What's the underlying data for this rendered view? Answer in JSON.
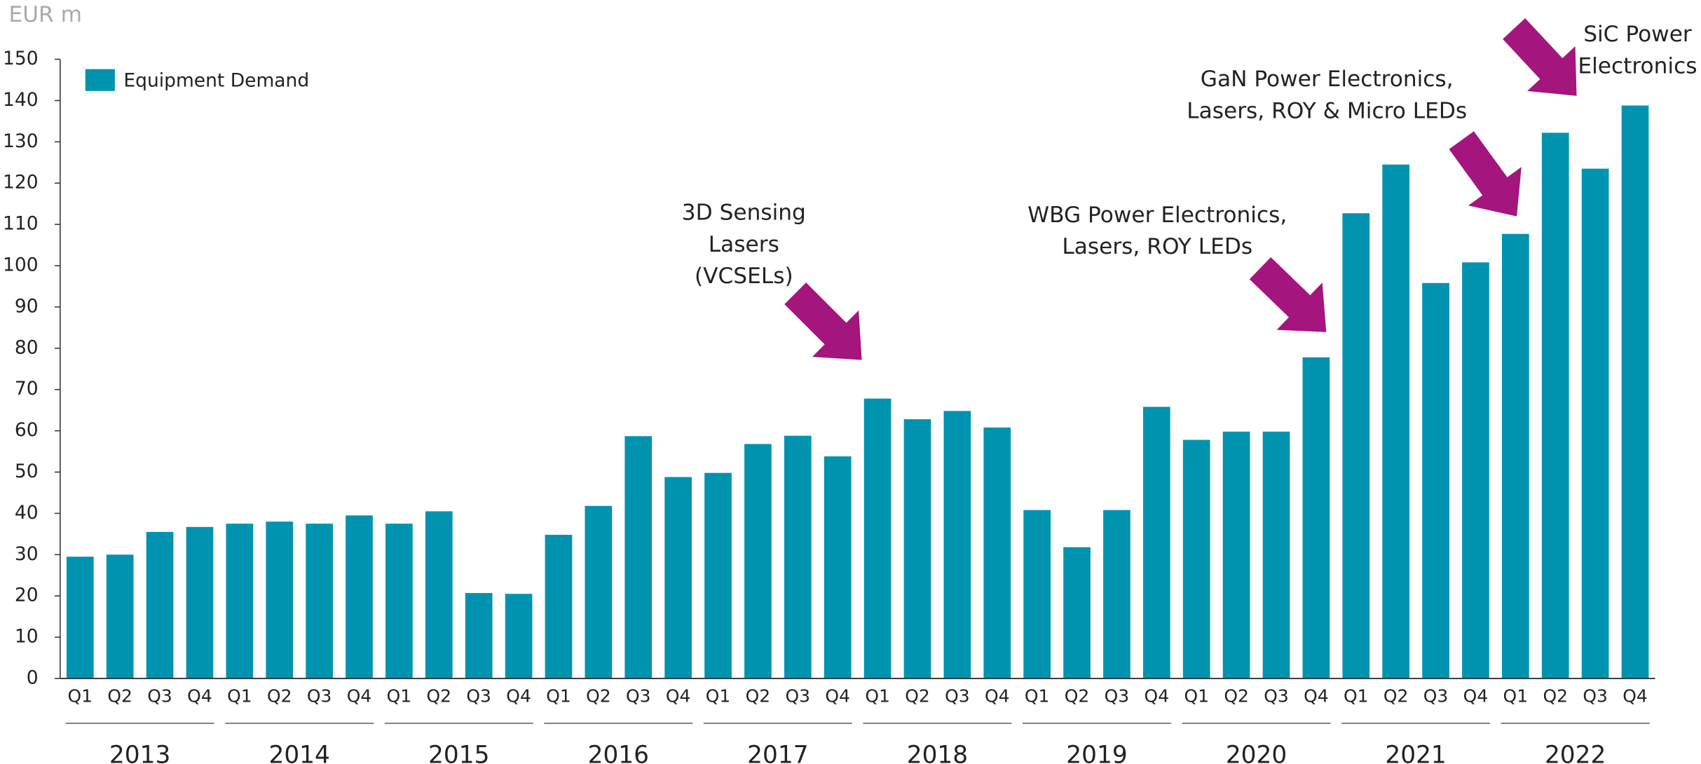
{
  "chart_data": {
    "type": "bar",
    "unit_label": "EUR m",
    "categories": [
      "Q1",
      "Q2",
      "Q3",
      "Q4",
      "Q1",
      "Q2",
      "Q3",
      "Q4",
      "Q1",
      "Q2",
      "Q3",
      "Q4",
      "Q1",
      "Q2",
      "Q3",
      "Q4",
      "Q1",
      "Q2",
      "Q3",
      "Q4",
      "Q1",
      "Q2",
      "Q3",
      "Q4",
      "Q1",
      "Q2",
      "Q3",
      "Q4",
      "Q1",
      "Q2",
      "Q3",
      "Q4",
      "Q1",
      "Q2",
      "Q3",
      "Q4",
      "Q1",
      "Q2",
      "Q3",
      "Q4"
    ],
    "groups": [
      "2013",
      "2014",
      "2015",
      "2016",
      "2017",
      "2018",
      "2019",
      "2020",
      "2021",
      "2022"
    ],
    "series": [
      {
        "name": "Equipment Demand",
        "color": "#0093b0",
        "values": [
          29.5,
          30,
          35.5,
          36.7,
          37.5,
          38,
          37.5,
          39.5,
          37.5,
          40.5,
          20.7,
          20.5,
          34.8,
          41.8,
          58.7,
          48.8,
          49.8,
          56.8,
          58.8,
          53.8,
          67.8,
          62.8,
          64.8,
          60.8,
          40.8,
          31.8,
          40.8,
          65.8,
          57.8,
          59.8,
          59.8,
          77.8,
          112.7,
          124.5,
          95.8,
          100.8,
          107.7,
          132.2,
          123.5,
          138.8
        ]
      }
    ],
    "ylim": [
      0,
      150
    ],
    "yticks": [
      0,
      10,
      20,
      30,
      40,
      50,
      60,
      70,
      80,
      90,
      100,
      110,
      120,
      130,
      140,
      150
    ],
    "legend": "top-left",
    "annotations": [
      {
        "lines": [
          "3D Sensing",
          "Lasers",
          "(VCSELs)"
        ]
      },
      {
        "lines": [
          "WBG Power Electronics,",
          "Lasers, ROY LEDs"
        ]
      },
      {
        "lines": [
          "GaN Power Electronics,",
          "Lasers, ROY & Micro LEDs"
        ]
      },
      {
        "lines": [
          "SiC Power",
          "Electronics"
        ]
      }
    ]
  }
}
